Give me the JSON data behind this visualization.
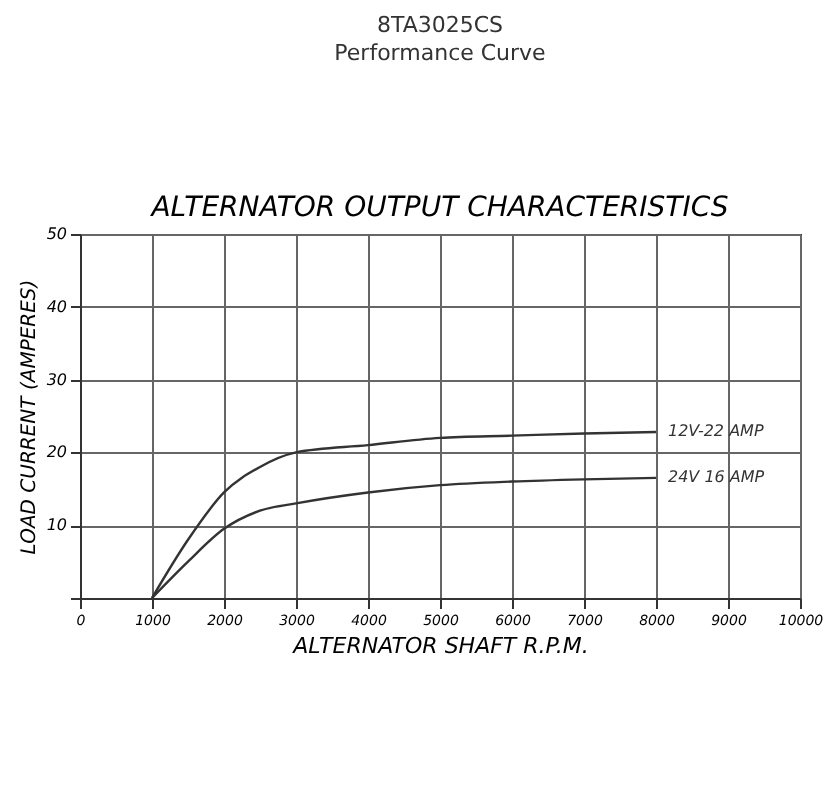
{
  "chart_data": {
    "type": "line",
    "title": "8TA3025CS",
    "subtitle": "Performance Curve",
    "annotations": [
      "ALTERNATOR OUTPUT CHARACTERISTICS"
    ],
    "xlabel": "ALTERNATOR SHAFT R.P.M.",
    "ylabel": "LOAD CURRENT (AMPERES)",
    "xlim": [
      0,
      10000
    ],
    "xticks": [
      0,
      1000,
      2000,
      3000,
      4000,
      5000,
      6000,
      7000,
      8000,
      9000,
      10000
    ],
    "ylim": [
      0,
      50
    ],
    "yticks": [
      {
        "value": 0,
        "label": null
      },
      10,
      20,
      30,
      40,
      50
    ],
    "grid": true,
    "series": [
      {
        "name": "12V-22 AMP",
        "color": "#333333",
        "x": [
          1000,
          1500,
          2000,
          2500,
          3000,
          4000,
          5000,
          6000,
          7000,
          8000
        ],
        "values": [
          0,
          8,
          14.5,
          18,
          20,
          21,
          22,
          22.3,
          22.6,
          22.8
        ]
      },
      {
        "name": "24V 16 AMP",
        "color": "#333333",
        "x": [
          1000,
          1500,
          2000,
          2500,
          3000,
          4000,
          5000,
          6000,
          7000,
          8000
        ],
        "values": [
          0,
          5,
          9.5,
          12,
          13,
          14.5,
          15.5,
          16,
          16.3,
          16.5
        ]
      }
    ]
  }
}
